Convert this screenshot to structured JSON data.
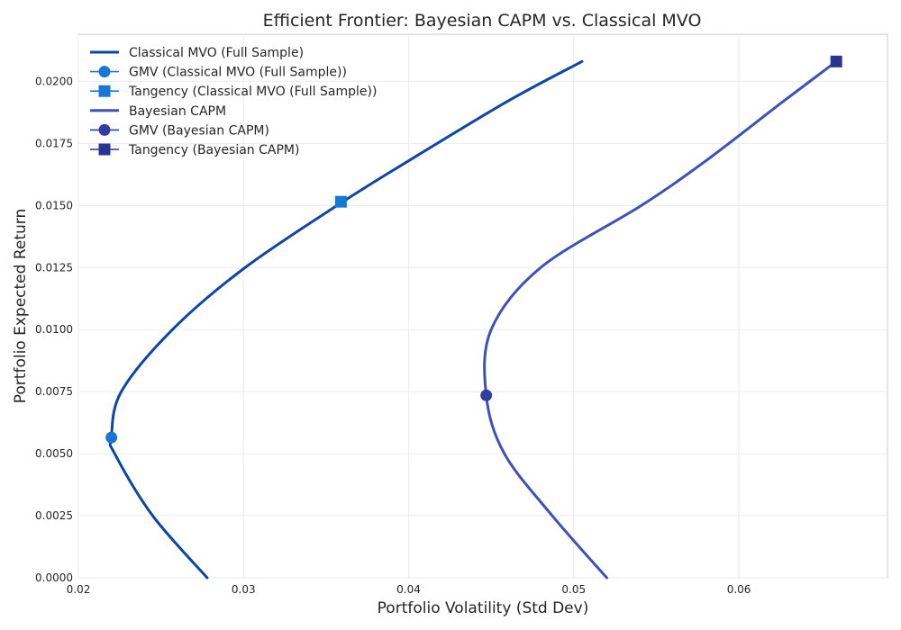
{
  "chart_data": {
    "type": "line",
    "title": "Efficient Frontier: Bayesian CAPM vs. Classical MVO",
    "xlabel": "Portfolio Volatility (Std Dev)",
    "ylabel": "Portfolio Expected Return",
    "xlim": [
      0.02,
      0.069
    ],
    "ylim": [
      0.0,
      0.0219
    ],
    "xticks": [
      "0.02",
      "0.03",
      "0.04",
      "0.05",
      "0.06"
    ],
    "yticks": [
      "0.0000",
      "0.0025",
      "0.0050",
      "0.0075",
      "0.0100",
      "0.0125",
      "0.0150",
      "0.0175",
      "0.0200"
    ],
    "grid": true,
    "legend_position": "top-left",
    "series": [
      {
        "name": "Classical MVO (Full Sample)",
        "kind": "frontier",
        "color": "#0d47a1",
        "gmv": {
          "x": 0.022,
          "y": 0.00565
        },
        "points": [
          {
            "x": 0.0278,
            "y": 0.0
          },
          {
            "x": 0.0245,
            "y": 0.0025
          },
          {
            "x": 0.0222,
            "y": 0.005
          },
          {
            "x": 0.022,
            "y": 0.00565
          },
          {
            "x": 0.0226,
            "y": 0.0075
          },
          {
            "x": 0.0257,
            "y": 0.01
          },
          {
            "x": 0.0301,
            "y": 0.0125
          },
          {
            "x": 0.0359,
            "y": 0.0151
          },
          {
            "x": 0.04,
            "y": 0.0168
          },
          {
            "x": 0.046,
            "y": 0.0192
          },
          {
            "x": 0.0505,
            "y": 0.0208
          }
        ]
      },
      {
        "name": "GMV (Classical MVO (Full Sample))",
        "kind": "marker",
        "marker": "circle",
        "color": "#1976d2",
        "x": 0.022,
        "y": 0.00565
      },
      {
        "name": "Tangency (Classical MVO (Full Sample))",
        "kind": "marker",
        "marker": "square",
        "color": "#1976d2",
        "x": 0.0359,
        "y": 0.01515
      },
      {
        "name": "Bayesian CAPM",
        "kind": "frontier",
        "color": "#3f51b5",
        "gmv": {
          "x": 0.0447,
          "y": 0.00735
        },
        "points": [
          {
            "x": 0.052,
            "y": 0.0
          },
          {
            "x": 0.0487,
            "y": 0.0025
          },
          {
            "x": 0.0458,
            "y": 0.005
          },
          {
            "x": 0.0447,
            "y": 0.00735
          },
          {
            "x": 0.045,
            "y": 0.01
          },
          {
            "x": 0.048,
            "y": 0.0125
          },
          {
            "x": 0.0541,
            "y": 0.015
          },
          {
            "x": 0.058,
            "y": 0.0168
          },
          {
            "x": 0.0627,
            "y": 0.0192
          },
          {
            "x": 0.0659,
            "y": 0.0208
          }
        ]
      },
      {
        "name": "GMV (Bayesian CAPM)",
        "kind": "marker",
        "marker": "circle",
        "color": "#303f9f",
        "x": 0.0447,
        "y": 0.00735
      },
      {
        "name": "Tangency (Bayesian CAPM)",
        "kind": "marker",
        "marker": "square",
        "color": "#283593",
        "x": 0.0659,
        "y": 0.0208
      }
    ]
  }
}
